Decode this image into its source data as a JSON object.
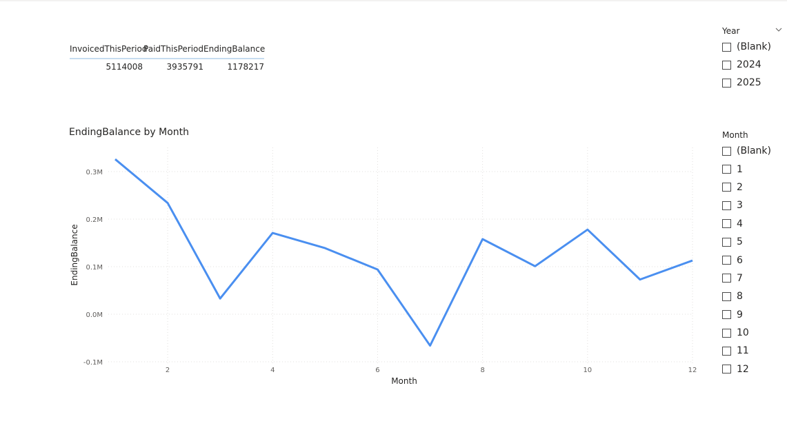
{
  "summary_table": {
    "headers": [
      "InvoicedThisPeriod",
      "PaidThisPeriod",
      "EndingBalance"
    ],
    "rows": [
      [
        "5114008",
        "3935791",
        "1178217"
      ]
    ]
  },
  "chart_data": {
    "type": "line",
    "title": "EndingBalance by Month",
    "xlabel": "Month",
    "ylabel": "EndingBalance",
    "x": [
      1,
      2,
      3,
      4,
      5,
      6,
      7,
      8,
      9,
      10,
      11,
      12
    ],
    "series": [
      {
        "values": [
          326000,
          234000,
          33000,
          171000,
          139000,
          94000,
          -66000,
          158000,
          101000,
          178000,
          73000,
          113000
        ],
        "color": "#4a8ff0"
      }
    ],
    "xlim": [
      1,
      12
    ],
    "ylim": [
      -100000,
      330000
    ],
    "x_ticks": [
      2,
      4,
      6,
      8,
      10,
      12
    ],
    "y_ticks": [
      -100000,
      0,
      100000,
      200000,
      300000
    ],
    "y_tick_labels": [
      "-0.1M",
      "0.0M",
      "0.1M",
      "0.2M",
      "0.3M"
    ],
    "grid": true
  },
  "slicers": {
    "year": {
      "title": "Year",
      "items": [
        "(Blank)",
        "2024",
        "2025"
      ]
    },
    "month": {
      "title": "Month",
      "items": [
        "(Blank)",
        "1",
        "2",
        "3",
        "4",
        "5",
        "6",
        "7",
        "8",
        "9",
        "10",
        "11",
        "12"
      ]
    }
  },
  "icons": {
    "dropdown": "chevron-down-icon",
    "checkbox": "checkbox-icon"
  }
}
